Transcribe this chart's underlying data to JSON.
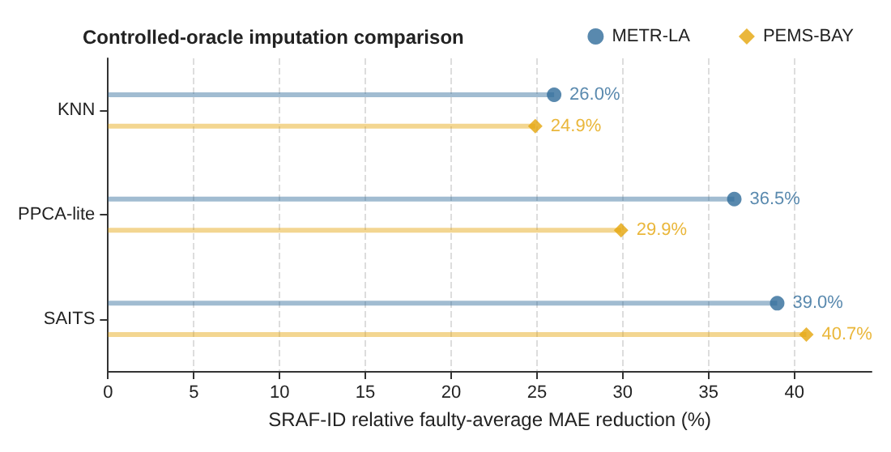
{
  "chart_data": {
    "type": "lollipop",
    "title": "Controlled-oracle imputation comparison",
    "xlabel": "SRAF-ID relative faulty-average MAE reduction (%)",
    "orientation": "horizontal",
    "categories": [
      "KNN",
      "PPCA-lite",
      "SAITS"
    ],
    "series": [
      {
        "name": "METR-LA",
        "color": "#2f6b9a",
        "marker": "circle",
        "values": [
          26.0,
          36.5,
          39.0
        ],
        "value_labels": [
          "26.0%",
          "36.5%",
          "39.0%"
        ]
      },
      {
        "name": "PEMS-BAY",
        "color": "#e5a50a",
        "marker": "diamond",
        "values": [
          24.9,
          29.9,
          40.7
        ],
        "value_labels": [
          "24.9%",
          "29.9%",
          "40.7%"
        ]
      }
    ],
    "xlim": [
      0,
      44.5
    ],
    "xticks": [
      0,
      5,
      10,
      15,
      20,
      25,
      30,
      35,
      40
    ],
    "grid": "x",
    "legend": "top right"
  }
}
